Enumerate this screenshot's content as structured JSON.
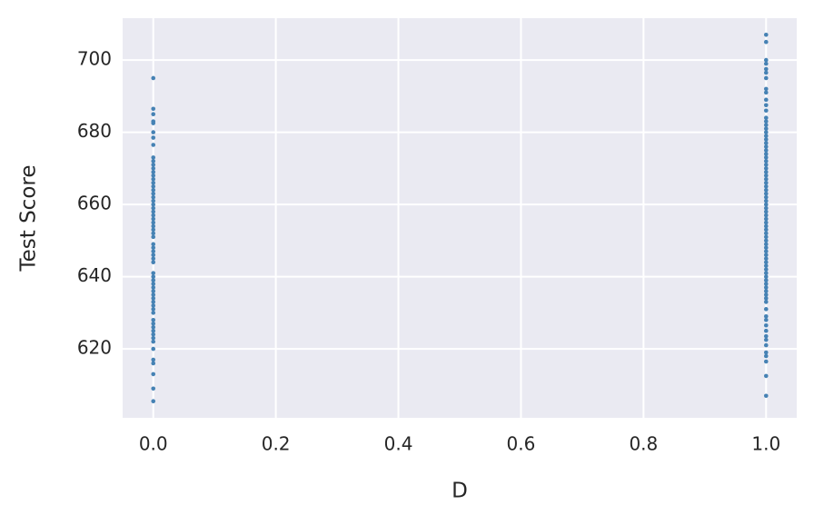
{
  "chart_data": {
    "type": "scatter",
    "xlabel": "D",
    "ylabel": "Test Score",
    "color": "#4682b4",
    "grid": true,
    "xlim": [
      -0.05,
      1.05
    ],
    "ylim": [
      600.9,
      711.6
    ],
    "xticks": [
      {
        "value": 0,
        "label": "0.0"
      },
      0.2,
      0.4,
      0.6,
      0.8,
      {
        "value": 1,
        "label": "1.0"
      }
    ],
    "yticks": [
      620,
      640,
      660,
      680,
      700
    ],
    "x": [
      0,
      0,
      0,
      0,
      0,
      0,
      0,
      0,
      0,
      0,
      0,
      0,
      0,
      0,
      0,
      0,
      0,
      0,
      0,
      0,
      0,
      0,
      0,
      0,
      0,
      0,
      0,
      0,
      0,
      0,
      0,
      0,
      0,
      0,
      0,
      0,
      0,
      0,
      0,
      0,
      0,
      0,
      0,
      0,
      0,
      0,
      0,
      0,
      0,
      0,
      0,
      0,
      0,
      0,
      0,
      0,
      0,
      0,
      0,
      0,
      0,
      0,
      1,
      1,
      1,
      1,
      1,
      1,
      1,
      1,
      1,
      1,
      1,
      1,
      1,
      1,
      1,
      1,
      1,
      1,
      1,
      1,
      1,
      1,
      1,
      1,
      1,
      1,
      1,
      1,
      1,
      1,
      1,
      1,
      1,
      1,
      1,
      1,
      1,
      1,
      1,
      1,
      1,
      1,
      1,
      1,
      1,
      1,
      1,
      1,
      1,
      1,
      1,
      1,
      1,
      1,
      1,
      1,
      1,
      1,
      1,
      1,
      1,
      1,
      1,
      1,
      1,
      1,
      1,
      1,
      1,
      1,
      1,
      1,
      1,
      1,
      1,
      1,
      1
    ],
    "values": [
      695,
      686.5,
      685,
      683,
      682.5,
      680,
      678.5,
      676.5,
      673,
      672,
      671,
      670,
      669,
      668,
      667,
      666,
      665,
      664,
      663,
      662,
      661,
      660,
      659,
      658,
      657,
      656,
      655,
      654,
      653,
      652,
      651,
      649,
      648,
      647,
      646,
      645,
      644,
      641,
      640,
      639,
      638,
      637,
      636,
      635,
      634,
      633,
      632,
      631,
      630,
      628,
      627,
      626,
      625,
      624,
      623,
      622,
      620,
      617,
      616,
      613,
      609,
      605.5,
      707,
      705,
      700,
      699,
      697.5,
      696.5,
      695,
      692,
      691,
      689,
      687.5,
      686,
      684,
      683,
      682,
      681,
      680,
      679,
      678,
      677,
      676,
      675,
      674,
      673,
      672,
      671,
      670,
      669,
      668,
      667,
      666,
      665,
      664,
      663,
      662,
      661,
      660,
      659,
      658,
      657,
      656,
      655,
      654,
      653,
      652,
      651,
      650,
      649,
      648,
      647,
      646,
      645,
      644,
      643,
      642,
      641,
      640,
      639,
      638,
      637,
      636,
      635,
      634,
      633,
      631,
      629,
      628,
      626.5,
      625,
      623.5,
      622.5,
      621,
      619,
      618,
      616.5,
      612.5,
      607
    ]
  }
}
